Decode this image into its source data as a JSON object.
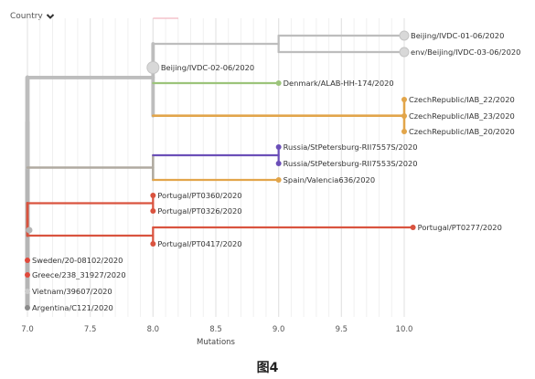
{
  "filter": {
    "label": "Country",
    "icon": "chevron-down-icon"
  },
  "caption": "图4",
  "chart_data": {
    "type": "phylogenetic-tree",
    "xlabel": "Mutations",
    "xlim": [
      7.0,
      10.0
    ],
    "x_ticks": [
      7.0,
      7.5,
      8.0,
      8.5,
      9.0,
      9.5,
      10.0
    ],
    "x_tick_labels": [
      "7.0",
      "7.5",
      "8.0",
      "8.5",
      "9.0",
      "9.5",
      "10.0"
    ],
    "grid": "vertical",
    "colors": {
      "China": "#bdbdbd",
      "Denmark": "#9cc47a",
      "CzechRepublic": "#e2a54a",
      "Russia": "#6b4fb8",
      "Spain": "#e2a54a",
      "Portugal": "#d9533f",
      "Sweden": "#e04a3c",
      "Greece": "#e04a3c",
      "Vietnam": "#cccccc",
      "Argentina": "#8a8a8a",
      "internal": "#b0aaa0"
    },
    "tips": [
      {
        "name": "Beijing/IVDC-01-06/2020",
        "x": 10.0,
        "color": "#d8d8d8",
        "size": "medium"
      },
      {
        "name": "env/Beijing/IVDC-03-06/2020",
        "x": 10.0,
        "color": "#d8d8d8",
        "size": "medium"
      },
      {
        "name": "Beijing/IVDC-02-06/2020",
        "x": 8.0,
        "color": "#d8d8d8",
        "size": "large"
      },
      {
        "name": "Denmark/ALAB-HH-174/2020",
        "x": 9.0,
        "color": "#9cc47a",
        "size": "small"
      },
      {
        "name": "CzechRepublic/IAB_22/2020",
        "x": 10.0,
        "color": "#e2a54a",
        "size": "small"
      },
      {
        "name": "CzechRepublic/IAB_23/2020",
        "x": 10.0,
        "color": "#e2a54a",
        "size": "small"
      },
      {
        "name": "CzechRepublic/IAB_20/2020",
        "x": 10.0,
        "color": "#e2a54a",
        "size": "small"
      },
      {
        "name": "Russia/StPetersburg-RII7557S/2020",
        "x": 9.0,
        "color": "#6b4fb8",
        "size": "small"
      },
      {
        "name": "Russia/StPetersburg-RII7553S/2020",
        "x": 9.0,
        "color": "#6b4fb8",
        "size": "small"
      },
      {
        "name": "Spain/Valencia636/2020",
        "x": 9.0,
        "color": "#e2a54a",
        "size": "small"
      },
      {
        "name": "Portugal/PT0360/2020",
        "x": 8.0,
        "color": "#d9533f",
        "size": "small"
      },
      {
        "name": "Portugal/PT0326/2020",
        "x": 8.0,
        "color": "#d9533f",
        "size": "small"
      },
      {
        "name": "Portugal/PT0277/2020",
        "x": 10.07,
        "color": "#d9533f",
        "size": "small"
      },
      {
        "name": "Portugal/PT0417/2020",
        "x": 8.0,
        "color": "#d9533f",
        "size": "small"
      },
      {
        "name": "Sweden/20-08102/2020",
        "x": 7.0,
        "color": "#e04a3c",
        "size": "small"
      },
      {
        "name": "Greece/238_31927/2020",
        "x": 7.0,
        "color": "#e04a3c",
        "size": "small"
      },
      {
        "name": "Vietnam/39607/2020",
        "x": 7.0,
        "color": "#cccccc",
        "size": "small"
      },
      {
        "name": "Argentina/C121/2020",
        "x": 7.0,
        "color": "#8a8a8a",
        "size": "small"
      }
    ]
  }
}
